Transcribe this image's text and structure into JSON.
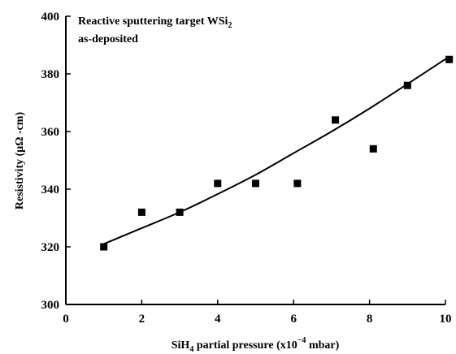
{
  "chart_data": {
    "type": "scatter",
    "annotation": {
      "line1": "Reactive sputtering target WSi",
      "line1_sub": "2",
      "line2": "as-deposited"
    },
    "xlabel": {
      "prefix": "SiH",
      "prefix_sub": "4",
      "middle": " partial pressure (x10",
      "exp": "−4",
      "suffix": " mbar)"
    },
    "ylabel": "Resistivity (μΩ -cm)",
    "xlim": [
      0,
      10
    ],
    "ylim": [
      300,
      400
    ],
    "xticks": [
      0,
      2,
      4,
      6,
      8,
      10
    ],
    "yticks": [
      300,
      320,
      340,
      360,
      380,
      400
    ],
    "grid": false,
    "series": [
      {
        "marker": "square",
        "x": [
          1,
          2,
          3,
          4,
          5,
          6.1,
          7.1,
          8.1,
          9,
          10.1
        ],
        "y": [
          320,
          332,
          332,
          342,
          342,
          342,
          364,
          354,
          376,
          385
        ]
      }
    ],
    "fit_curve": {
      "x": [
        1,
        2,
        3,
        4,
        5,
        6,
        7,
        8,
        9,
        10.1
      ],
      "y": [
        321,
        326.5,
        332,
        338.3,
        345,
        352.5,
        360,
        368,
        376.5,
        386
      ]
    }
  }
}
